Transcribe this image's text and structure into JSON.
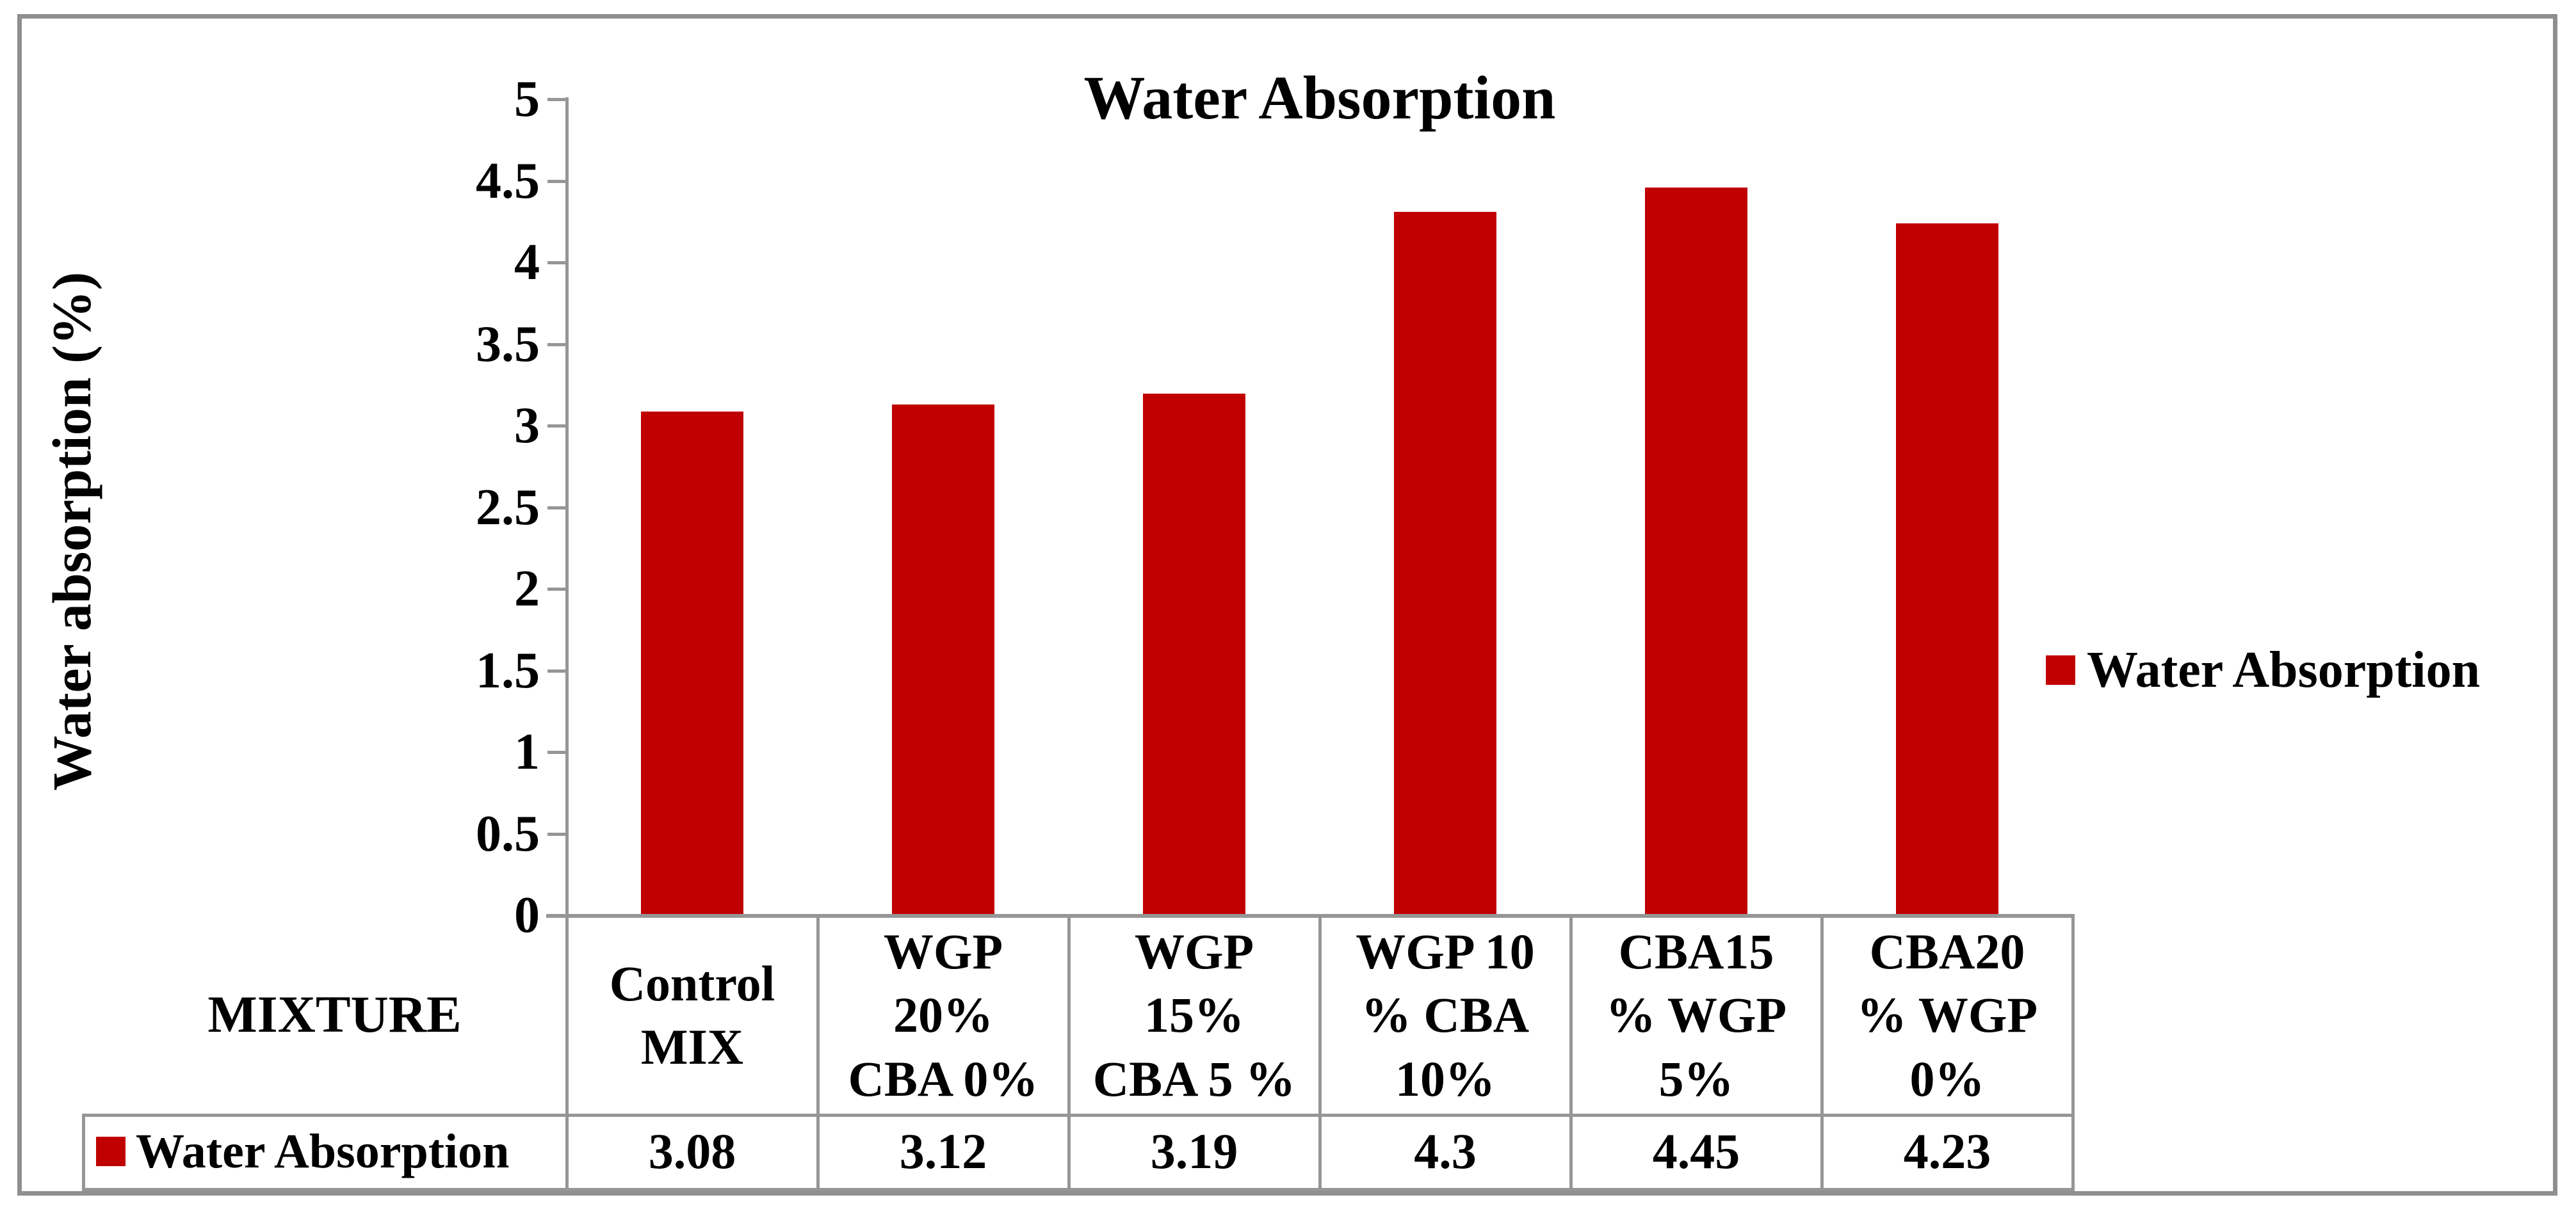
{
  "title": "Water Absorption",
  "y_axis": {
    "label": "Water absorption (%)",
    "ticks": [
      "0",
      "0.5",
      "1",
      "1.5",
      "2",
      "2.5",
      "3",
      "3.5",
      "4",
      "4.5",
      "5"
    ]
  },
  "x_axis": {
    "label": "MIXTURE"
  },
  "legend": {
    "label": "Water Absorption",
    "key_color": "#C00000"
  },
  "table": {
    "row_header": "Water Absorption",
    "values": [
      "3.08",
      "3.12",
      "3.19",
      "4.3",
      "4.45",
      "4.23"
    ]
  },
  "category_lines": [
    [
      "Control",
      "MIX"
    ],
    [
      "WGP",
      "20%",
      "CBA 0%"
    ],
    [
      "WGP",
      "15%",
      "CBA 5 %"
    ],
    [
      "WGP 10",
      "% CBA",
      "10%"
    ],
    [
      "CBA15",
      "% WGP",
      "5%"
    ],
    [
      "CBA20",
      "% WGP",
      "0%"
    ]
  ],
  "colors": {
    "bar": "#C00000",
    "line": "#969696",
    "text": "#000000",
    "border": "#8F8F8F"
  },
  "chart_data": {
    "type": "bar",
    "title": "Water Absorption",
    "categories": [
      "Control MIX",
      "WGP 20% CBA 0%",
      "WGP 15% CBA 5 %",
      "WGP 10 % CBA 10%",
      "CBA15 % WGP 5%",
      "CBA20 % WGP 0%"
    ],
    "series": [
      {
        "name": "Water Absorption",
        "values": [
          3.08,
          3.12,
          3.19,
          4.3,
          4.45,
          4.23
        ]
      }
    ],
    "xlabel": "MIXTURE",
    "ylabel": "Water absorption (%)",
    "ylim": [
      0,
      5
    ],
    "ytick_step": 0.5,
    "grid": false,
    "legend_position": "right",
    "data_table_shown": true,
    "bar_color": "#C00000"
  }
}
